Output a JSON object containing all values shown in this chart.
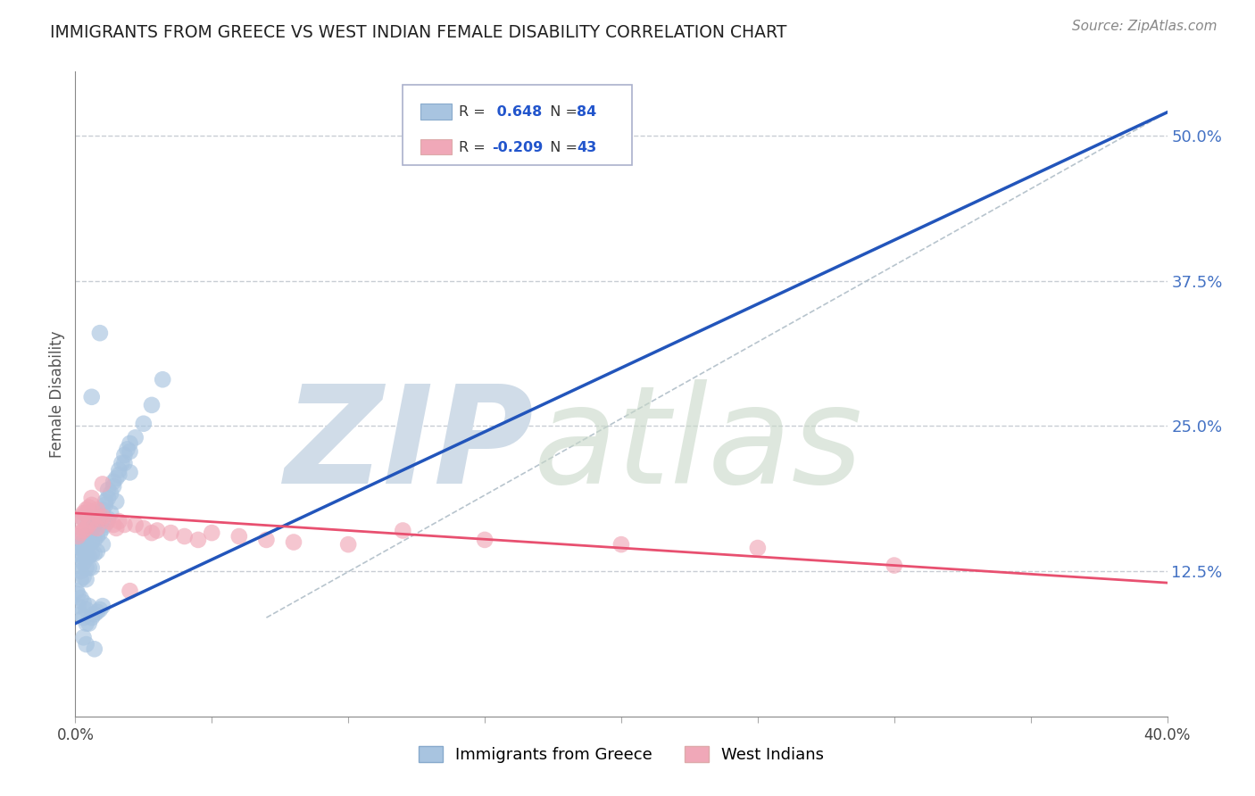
{
  "title": "IMMIGRANTS FROM GREECE VS WEST INDIAN FEMALE DISABILITY CORRELATION CHART",
  "source": "Source: ZipAtlas.com",
  "ylabel": "Female Disability",
  "ytick_labels": [
    "12.5%",
    "25.0%",
    "37.5%",
    "50.0%"
  ],
  "ytick_values": [
    0.125,
    0.25,
    0.375,
    0.5
  ],
  "legend_blue_r": "0.648",
  "legend_blue_n": "84",
  "legend_pink_r": "-0.209",
  "legend_pink_n": "43",
  "blue_color": "#a8c4e0",
  "pink_color": "#f0a8b8",
  "blue_line_color": "#2255bb",
  "pink_line_color": "#e85070",
  "ref_line_color": "#b0bec8",
  "grid_color": "#c8cdd4",
  "watermark_zip_color": "#d0dce8",
  "watermark_atlas_color": "#c8d8c8",
  "background_color": "#ffffff",
  "xlim": [
    0.0,
    0.4
  ],
  "ylim": [
    0.0,
    0.555
  ],
  "blue_scatter_x": [
    0.0005,
    0.001,
    0.001,
    0.001,
    0.002,
    0.002,
    0.002,
    0.002,
    0.003,
    0.003,
    0.003,
    0.003,
    0.004,
    0.004,
    0.004,
    0.004,
    0.004,
    0.005,
    0.005,
    0.005,
    0.005,
    0.006,
    0.006,
    0.006,
    0.006,
    0.007,
    0.007,
    0.007,
    0.008,
    0.008,
    0.008,
    0.009,
    0.009,
    0.01,
    0.01,
    0.01,
    0.011,
    0.011,
    0.012,
    0.012,
    0.013,
    0.013,
    0.014,
    0.015,
    0.015,
    0.016,
    0.017,
    0.018,
    0.019,
    0.02,
    0.0005,
    0.001,
    0.001,
    0.002,
    0.002,
    0.003,
    0.003,
    0.004,
    0.004,
    0.005,
    0.005,
    0.006,
    0.007,
    0.008,
    0.009,
    0.01,
    0.011,
    0.012,
    0.014,
    0.016,
    0.018,
    0.02,
    0.022,
    0.025,
    0.028,
    0.032,
    0.02,
    0.009,
    0.006,
    0.003,
    0.004,
    0.007,
    0.003,
    0.005
  ],
  "blue_scatter_y": [
    0.155,
    0.148,
    0.14,
    0.13,
    0.145,
    0.138,
    0.125,
    0.118,
    0.15,
    0.142,
    0.132,
    0.12,
    0.155,
    0.148,
    0.138,
    0.128,
    0.118,
    0.158,
    0.148,
    0.138,
    0.128,
    0.16,
    0.15,
    0.14,
    0.128,
    0.165,
    0.152,
    0.14,
    0.168,
    0.155,
    0.142,
    0.172,
    0.158,
    0.178,
    0.162,
    0.148,
    0.182,
    0.165,
    0.188,
    0.17,
    0.192,
    0.175,
    0.198,
    0.205,
    0.185,
    0.212,
    0.218,
    0.225,
    0.23,
    0.235,
    0.108,
    0.105,
    0.095,
    0.102,
    0.088,
    0.098,
    0.085,
    0.092,
    0.08,
    0.095,
    0.08,
    0.085,
    0.088,
    0.09,
    0.092,
    0.095,
    0.185,
    0.195,
    0.202,
    0.208,
    0.218,
    0.228,
    0.24,
    0.252,
    0.268,
    0.29,
    0.21,
    0.33,
    0.275,
    0.068,
    0.062,
    0.058,
    0.17,
    0.172
  ],
  "pink_scatter_x": [
    0.001,
    0.001,
    0.002,
    0.002,
    0.003,
    0.003,
    0.004,
    0.004,
    0.005,
    0.005,
    0.006,
    0.006,
    0.007,
    0.008,
    0.008,
    0.009,
    0.01,
    0.012,
    0.014,
    0.015,
    0.016,
    0.018,
    0.02,
    0.022,
    0.025,
    0.028,
    0.03,
    0.035,
    0.04,
    0.045,
    0.05,
    0.06,
    0.07,
    0.08,
    0.1,
    0.12,
    0.15,
    0.2,
    0.25,
    0.3,
    0.004,
    0.006,
    0.01
  ],
  "pink_scatter_y": [
    0.168,
    0.155,
    0.172,
    0.158,
    0.175,
    0.16,
    0.178,
    0.162,
    0.18,
    0.165,
    0.182,
    0.168,
    0.175,
    0.178,
    0.162,
    0.17,
    0.172,
    0.168,
    0.165,
    0.162,
    0.168,
    0.165,
    0.108,
    0.165,
    0.162,
    0.158,
    0.16,
    0.158,
    0.155,
    0.152,
    0.158,
    0.155,
    0.152,
    0.15,
    0.148,
    0.16,
    0.152,
    0.148,
    0.145,
    0.13,
    0.175,
    0.188,
    0.2
  ],
  "blue_trend": [
    0.0,
    0.4,
    0.08,
    0.52
  ],
  "pink_trend": [
    0.0,
    0.4,
    0.175,
    0.115
  ],
  "ref_diag": [
    0.07,
    0.4,
    0.085,
    0.52
  ]
}
